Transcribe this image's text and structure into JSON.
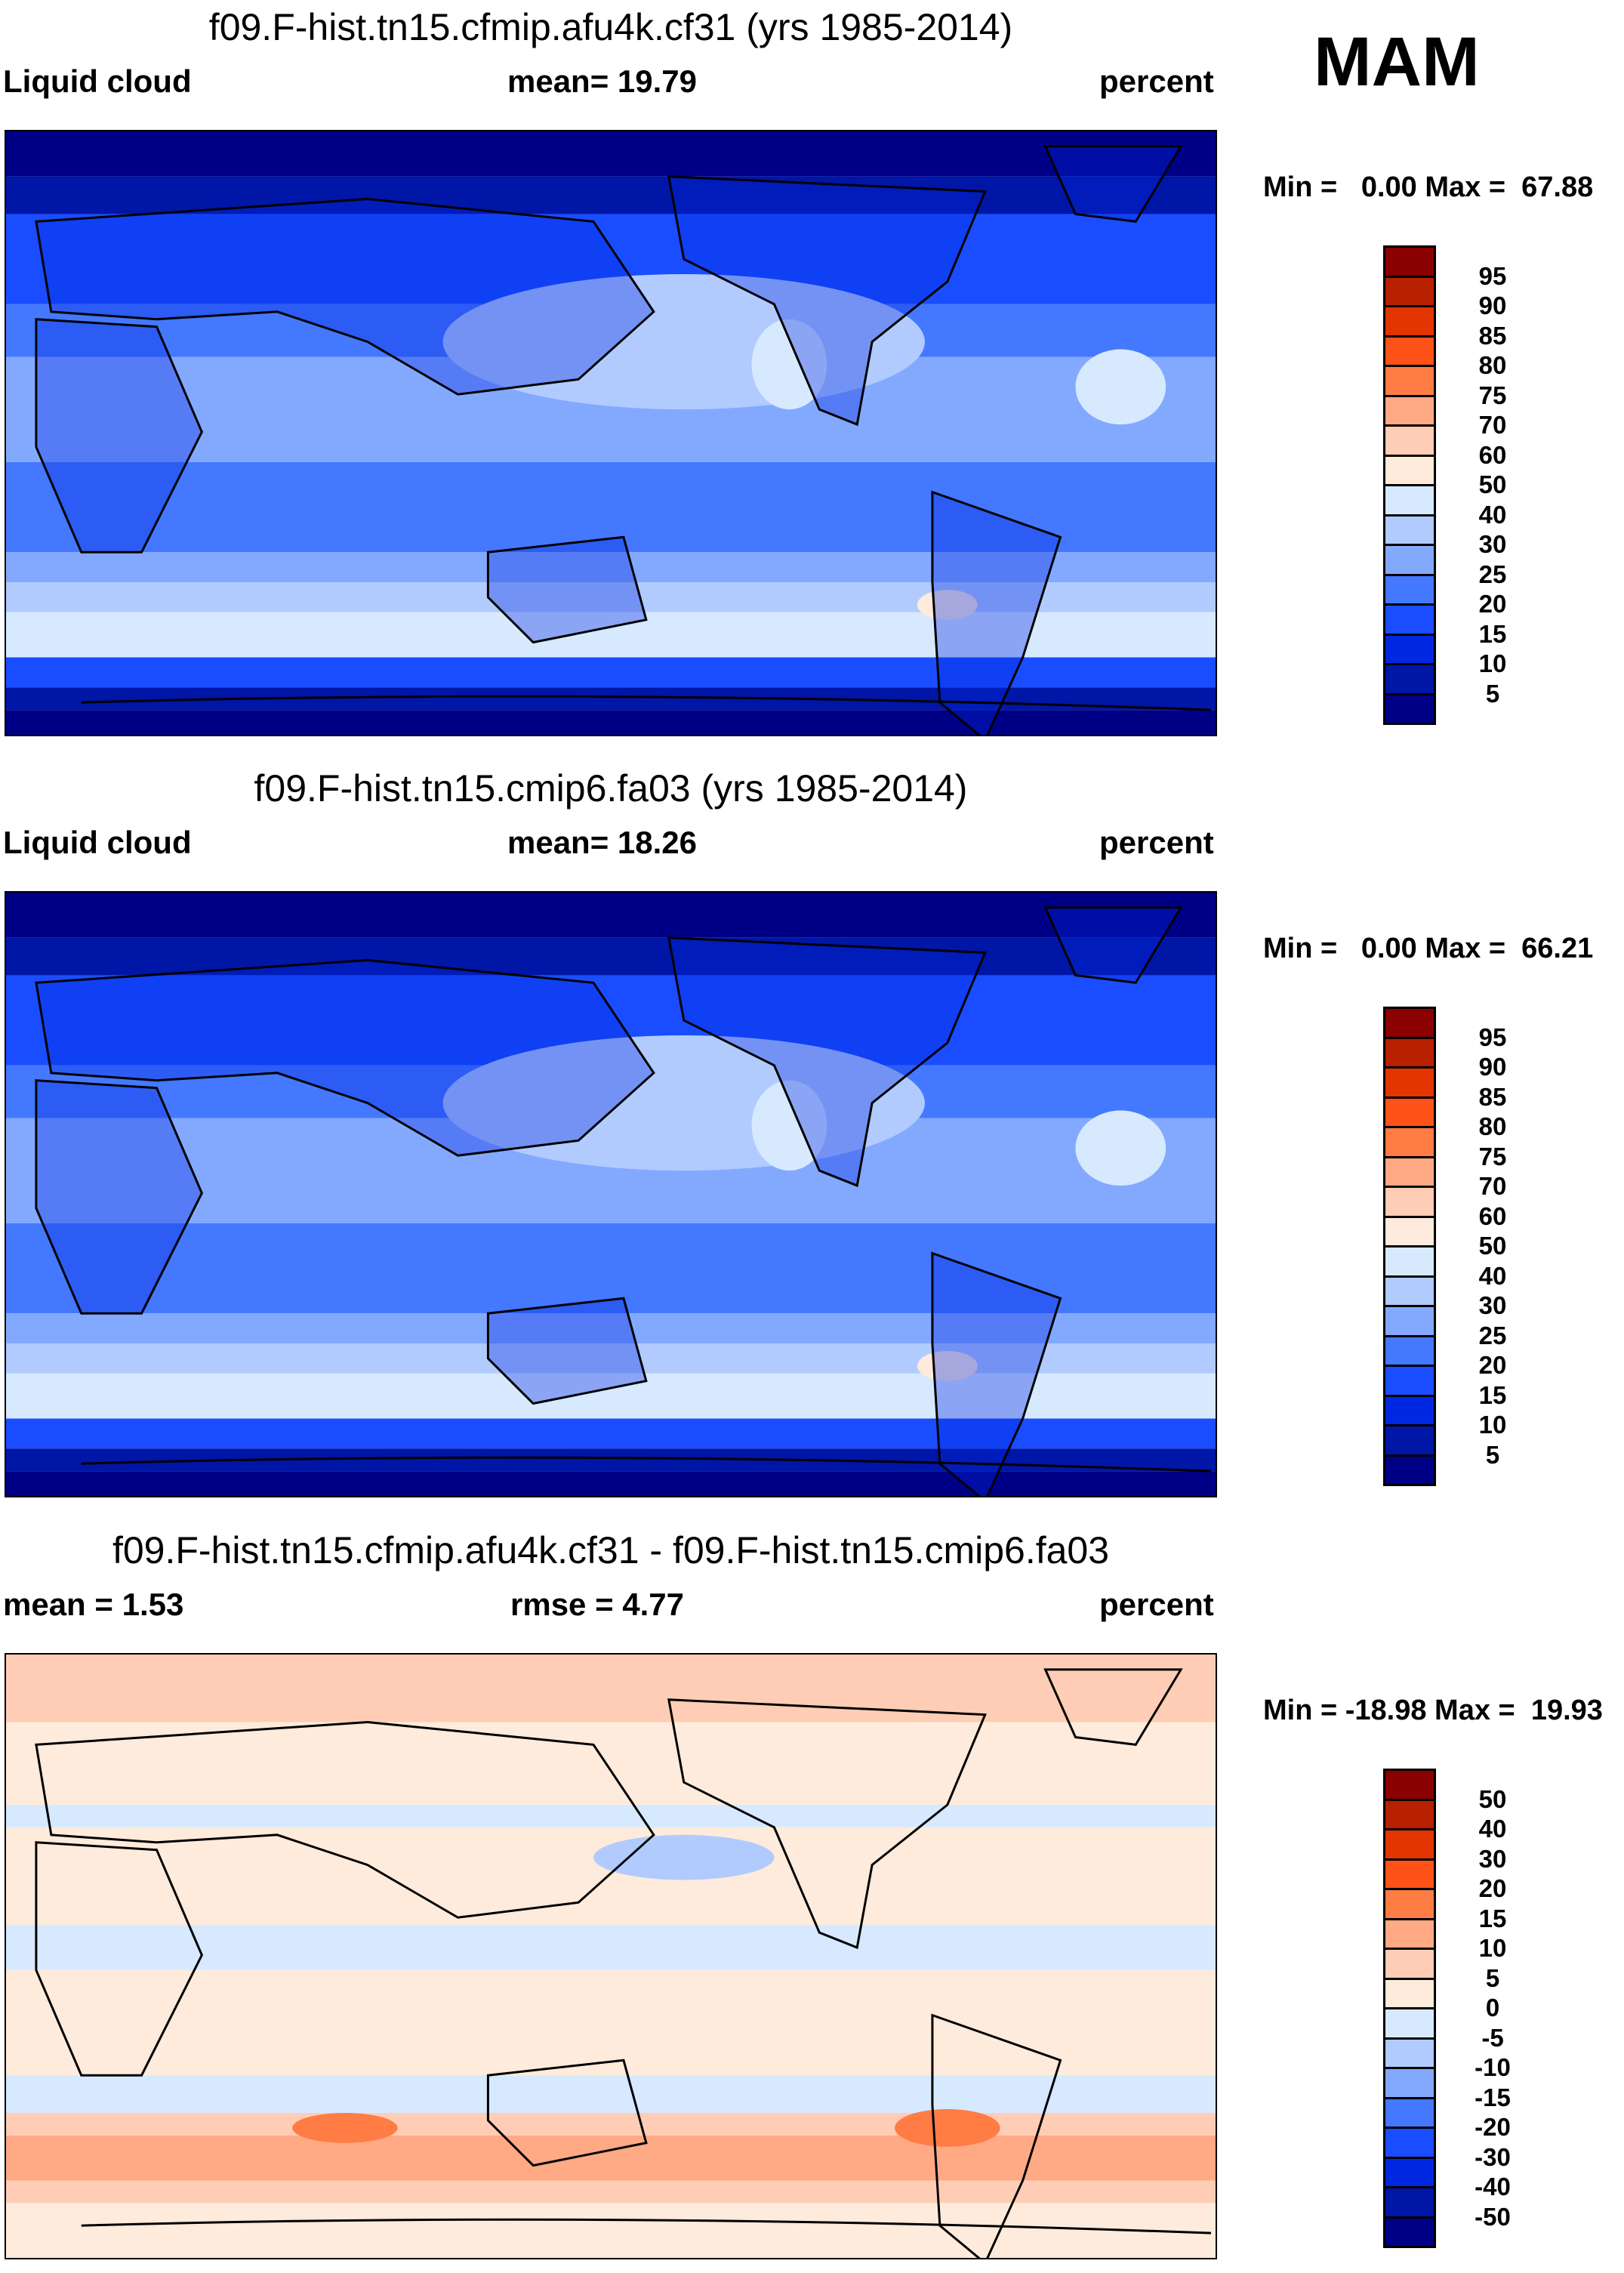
{
  "season": "MAM",
  "chart_data": {
    "type": "heatmap",
    "maps": [
      {
        "title": "f09.F-hist.tn15.cfmip.afu4k.cf31 (yrs 1985-2014)",
        "left_label": "Liquid cloud",
        "center_label": "mean=  19.79",
        "units": "percent",
        "minmax": "Min =   0.00 Max =  67.88",
        "min": 0.0,
        "max": 67.88,
        "mean": 19.79,
        "levels": [
          "95",
          "90",
          "85",
          "80",
          "75",
          "70",
          "60",
          "50",
          "40",
          "30",
          "25",
          "20",
          "15",
          "10",
          "5"
        ]
      },
      {
        "title": "f09.F-hist.tn15.cmip6.fa03 (yrs 1985-2014)",
        "left_label": "Liquid cloud",
        "center_label": "mean=  18.26",
        "units": "percent",
        "minmax": "Min =   0.00 Max =  66.21",
        "min": 0.0,
        "max": 66.21,
        "mean": 18.26,
        "levels": [
          "95",
          "90",
          "85",
          "80",
          "75",
          "70",
          "60",
          "50",
          "40",
          "30",
          "25",
          "20",
          "15",
          "10",
          "5"
        ]
      },
      {
        "title": "f09.F-hist.tn15.cfmip.afu4k.cf31 - f09.F-hist.tn15.cmip6.fa03",
        "left_label": "mean =   1.53",
        "center_label": "rmse =    4.77",
        "units": "percent",
        "minmax": "Min = -18.98 Max =  19.93",
        "min": -18.98,
        "max": 19.93,
        "mean": 1.53,
        "rmse": 4.77,
        "levels": [
          "50",
          "40",
          "30",
          "20",
          "15",
          "10",
          "5",
          "0",
          "-5",
          "-10",
          "-15",
          "-20",
          "-30",
          "-40",
          "-50"
        ]
      }
    ],
    "colors": [
      "#8b0000",
      "#b82000",
      "#e33500",
      "#ff5218",
      "#ff7c45",
      "#ffa985",
      "#ffcdb5",
      "#ffebdb",
      "#d6e9ff",
      "#b1cbff",
      "#83a9ff",
      "#4478ff",
      "#1a4dff",
      "#0028e0",
      "#0016a6",
      "#000086"
    ]
  }
}
